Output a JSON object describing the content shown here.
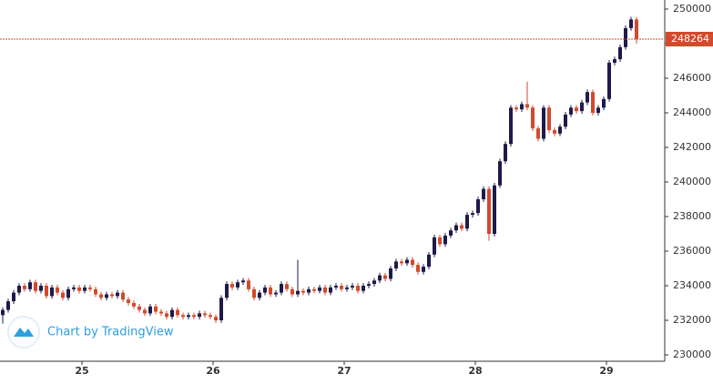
{
  "chart_data": {
    "type": "candlestick",
    "up_color": "#1e1a4a",
    "down_color": "#d24a2c",
    "open": [
      232300,
      232600,
      233100,
      233600,
      234000,
      233800,
      234200,
      233700,
      234000,
      233400,
      233900,
      233600,
      233300,
      233800,
      233900,
      233700,
      233900,
      233800,
      233500,
      233300,
      233500,
      233400,
      233600,
      233200,
      233000,
      232800,
      232600,
      232400,
      232800,
      232500,
      232400,
      232200,
      232600,
      232300,
      232200,
      232300,
      232200,
      232400,
      232300,
      232200,
      232000,
      233300,
      234100,
      233900,
      234200,
      234300,
      233800,
      233300,
      233600,
      233900,
      233500,
      233600,
      234100,
      233800,
      233500,
      233700,
      233600,
      233800,
      233700,
      233900,
      233600,
      233900,
      234000,
      233800,
      233900,
      234000,
      233700,
      234000,
      234100,
      234300,
      234600,
      234400,
      235000,
      235400,
      235300,
      235500,
      235200,
      234800,
      235100,
      235800,
      236800,
      236400,
      236900,
      237200,
      237500,
      237300,
      238100,
      238200,
      239000,
      239600,
      237000,
      239800,
      241200,
      242200,
      244300,
      244200,
      244500,
      244300,
      243100,
      242500,
      244300,
      243000,
      242800,
      243200,
      243900,
      244300,
      244100,
      244600,
      245200,
      244000,
      244300,
      244800,
      246900,
      247100,
      247800,
      248900,
      249400
    ],
    "high": [
      232750,
      233250,
      233750,
      234150,
      234150,
      234350,
      234350,
      234150,
      234150,
      234050,
      234050,
      233750,
      233950,
      234050,
      234050,
      234050,
      234050,
      233950,
      233650,
      233650,
      233650,
      233750,
      233750,
      233350,
      233150,
      232950,
      232750,
      232950,
      232950,
      232650,
      232550,
      232750,
      232750,
      232450,
      232450,
      232450,
      232550,
      232550,
      232450,
      232350,
      233450,
      234250,
      234250,
      234350,
      234450,
      234450,
      233950,
      233750,
      234050,
      234050,
      233750,
      234250,
      234250,
      233950,
      235500,
      233850,
      233950,
      233950,
      234050,
      234050,
      234050,
      234150,
      234150,
      234050,
      234150,
      234150,
      234150,
      234250,
      234450,
      234750,
      234750,
      235150,
      235550,
      235550,
      235650,
      235650,
      235350,
      235250,
      235950,
      236950,
      236950,
      237050,
      237350,
      237650,
      237650,
      238250,
      238350,
      239150,
      239750,
      239750,
      239950,
      241350,
      242350,
      244450,
      244450,
      244650,
      245800,
      244450,
      243250,
      244450,
      244450,
      243150,
      243350,
      244050,
      244450,
      244450,
      244750,
      245350,
      245350,
      244450,
      244950,
      247050,
      247250,
      247950,
      249050,
      249550,
      249550
    ],
    "low": [
      231800,
      232450,
      232950,
      233450,
      233650,
      233650,
      233550,
      233550,
      233250,
      233250,
      233450,
      233150,
      233150,
      233650,
      233550,
      233550,
      233650,
      233350,
      233150,
      233150,
      233250,
      233250,
      233050,
      232850,
      232650,
      232450,
      232250,
      232250,
      232350,
      232250,
      232050,
      232050,
      232150,
      232050,
      232050,
      232050,
      232050,
      232150,
      232050,
      231850,
      231850,
      233150,
      233750,
      233750,
      234050,
      233650,
      233150,
      233150,
      233450,
      233350,
      233350,
      233450,
      233650,
      233350,
      233350,
      233450,
      233450,
      233550,
      233550,
      233450,
      233450,
      233750,
      233650,
      233650,
      233750,
      233550,
      233550,
      233850,
      233950,
      234150,
      234250,
      234250,
      234850,
      235150,
      235150,
      235050,
      234650,
      234650,
      234950,
      235650,
      236250,
      236250,
      236750,
      237050,
      237150,
      237150,
      237950,
      238050,
      238850,
      236600,
      236850,
      239650,
      241050,
      242050,
      244050,
      244050,
      244150,
      242950,
      242350,
      242350,
      242850,
      242650,
      242650,
      243050,
      243750,
      243950,
      243950,
      244450,
      243850,
      243850,
      244150,
      244650,
      246750,
      246950,
      247650,
      248750,
      248000
    ],
    "close": [
      232600,
      233100,
      233600,
      234000,
      233800,
      234200,
      233700,
      234000,
      233400,
      233900,
      233600,
      233300,
      233800,
      233900,
      233700,
      233900,
      233800,
      233500,
      233300,
      233500,
      233400,
      233600,
      233200,
      233000,
      232800,
      232600,
      232400,
      232800,
      232500,
      232400,
      232200,
      232600,
      232300,
      232200,
      232300,
      232200,
      232400,
      232300,
      232200,
      232000,
      233300,
      234100,
      233900,
      234200,
      234300,
      233800,
      233300,
      233600,
      233900,
      233500,
      233600,
      234100,
      233800,
      233500,
      233700,
      233600,
      233800,
      233700,
      233900,
      233600,
      233900,
      234000,
      233800,
      233900,
      234000,
      233700,
      234000,
      234100,
      234300,
      234600,
      234400,
      235000,
      235400,
      235300,
      235500,
      235200,
      234800,
      235100,
      235800,
      236800,
      236400,
      236900,
      237200,
      237500,
      237300,
      238100,
      238200,
      239000,
      239600,
      237000,
      239800,
      241200,
      242200,
      244300,
      244200,
      244500,
      244300,
      243100,
      242500,
      244300,
      243000,
      242800,
      243200,
      243900,
      244300,
      244100,
      244600,
      245200,
      244000,
      244300,
      244800,
      246900,
      247100,
      247800,
      248900,
      249400,
      248264
    ],
    "xlim": [
      -0.5,
      121
    ],
    "xticks": [
      {
        "value": 14.5,
        "label": "25"
      },
      {
        "value": 38.5,
        "label": "26"
      },
      {
        "value": 62.5,
        "label": "27"
      },
      {
        "value": 86.5,
        "label": "28"
      },
      {
        "value": 110.5,
        "label": "29"
      }
    ],
    "ylim": [
      230000,
      250000
    ],
    "yticks": [
      230000,
      232000,
      234000,
      236000,
      238000,
      240000,
      242000,
      244000,
      246000,
      248000,
      250000
    ],
    "last_price": 248264,
    "last_price_color": "#d24a2c",
    "watermark": "Chart by TradingView"
  }
}
